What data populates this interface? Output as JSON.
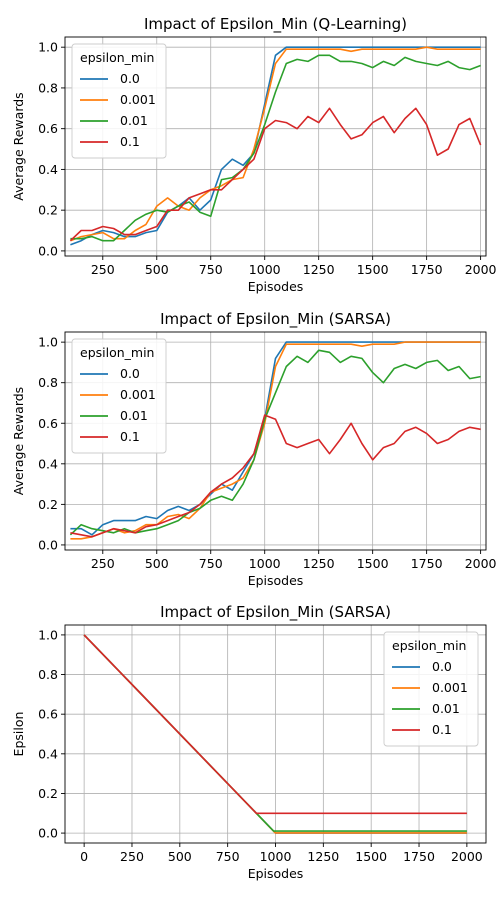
{
  "colors": {
    "0.0": "#1f77b4",
    "0.001": "#ff7f0e",
    "0.01": "#2ca02c",
    "0.1": "#d62728"
  },
  "chart_data": [
    {
      "type": "line",
      "title": "Impact of Epsilon_Min (Q-Learning)",
      "xlabel": "Episodes",
      "ylabel": "Average Rewards",
      "xlim": [
        75,
        2025
      ],
      "ylim": [
        -0.025,
        1.05
      ],
      "xticks": [
        250,
        500,
        750,
        1000,
        1250,
        1500,
        1750,
        2000
      ],
      "yticks": [
        0.0,
        0.2,
        0.4,
        0.6,
        0.8,
        1.0
      ],
      "grid": true,
      "legend_title": "epsilon_min",
      "legend_loc": "upper-left",
      "series": [
        {
          "name": "0.0",
          "x": [
            100,
            150,
            200,
            250,
            300,
            350,
            400,
            450,
            500,
            550,
            600,
            650,
            700,
            750,
            800,
            850,
            900,
            950,
            1000,
            1050,
            1100,
            1150,
            1200,
            1250,
            1300,
            1350,
            1400,
            1450,
            1500,
            1550,
            1600,
            1650,
            1700,
            1750,
            1800,
            1850,
            1900,
            1950,
            2000
          ],
          "y": [
            0.03,
            0.05,
            0.08,
            0.1,
            0.09,
            0.07,
            0.07,
            0.09,
            0.1,
            0.19,
            0.22,
            0.26,
            0.2,
            0.25,
            0.4,
            0.45,
            0.42,
            0.48,
            0.72,
            0.96,
            1.0,
            1.0,
            1.0,
            1.0,
            1.0,
            1.0,
            1.0,
            1.0,
            1.0,
            1.0,
            1.0,
            1.0,
            1.0,
            1.0,
            1.0,
            1.0,
            1.0,
            1.0,
            1.0
          ]
        },
        {
          "name": "0.001",
          "x": [
            100,
            150,
            200,
            250,
            300,
            350,
            400,
            450,
            500,
            550,
            600,
            650,
            700,
            750,
            800,
            850,
            900,
            950,
            1000,
            1050,
            1100,
            1150,
            1200,
            1250,
            1300,
            1350,
            1400,
            1450,
            1500,
            1550,
            1600,
            1650,
            1700,
            1750,
            1800,
            1850,
            1900,
            1950,
            2000
          ],
          "y": [
            0.05,
            0.07,
            0.08,
            0.09,
            0.06,
            0.06,
            0.1,
            0.13,
            0.22,
            0.26,
            0.22,
            0.2,
            0.26,
            0.3,
            0.32,
            0.35,
            0.36,
            0.5,
            0.7,
            0.92,
            0.99,
            0.99,
            0.99,
            0.99,
            0.99,
            0.99,
            0.98,
            0.99,
            0.99,
            0.99,
            0.99,
            0.99,
            0.99,
            1.0,
            0.99,
            0.99,
            0.99,
            0.99,
            0.99
          ]
        },
        {
          "name": "0.01",
          "x": [
            100,
            150,
            200,
            250,
            300,
            350,
            400,
            450,
            500,
            550,
            600,
            650,
            700,
            750,
            800,
            850,
            900,
            950,
            1000,
            1050,
            1100,
            1150,
            1200,
            1250,
            1300,
            1350,
            1400,
            1450,
            1500,
            1550,
            1600,
            1650,
            1700,
            1750,
            1800,
            1850,
            1900,
            1950,
            2000
          ],
          "y": [
            0.06,
            0.06,
            0.07,
            0.05,
            0.05,
            0.1,
            0.15,
            0.18,
            0.2,
            0.19,
            0.22,
            0.24,
            0.19,
            0.17,
            0.35,
            0.36,
            0.4,
            0.48,
            0.62,
            0.78,
            0.92,
            0.94,
            0.93,
            0.96,
            0.96,
            0.93,
            0.93,
            0.92,
            0.9,
            0.93,
            0.91,
            0.95,
            0.93,
            0.92,
            0.91,
            0.93,
            0.9,
            0.89,
            0.91
          ]
        },
        {
          "name": "0.1",
          "x": [
            100,
            150,
            200,
            250,
            300,
            350,
            400,
            450,
            500,
            550,
            600,
            650,
            700,
            750,
            800,
            850,
            900,
            950,
            1000,
            1050,
            1100,
            1150,
            1200,
            1250,
            1300,
            1350,
            1400,
            1450,
            1500,
            1550,
            1600,
            1650,
            1700,
            1750,
            1800,
            1850,
            1900,
            1950,
            2000
          ],
          "y": [
            0.05,
            0.1,
            0.1,
            0.12,
            0.11,
            0.08,
            0.08,
            0.1,
            0.12,
            0.2,
            0.2,
            0.26,
            0.28,
            0.3,
            0.3,
            0.35,
            0.4,
            0.45,
            0.6,
            0.64,
            0.63,
            0.6,
            0.66,
            0.63,
            0.7,
            0.62,
            0.55,
            0.57,
            0.63,
            0.66,
            0.58,
            0.65,
            0.7,
            0.62,
            0.47,
            0.5,
            0.62,
            0.65,
            0.52
          ]
        }
      ]
    },
    {
      "type": "line",
      "title": "Impact of Epsilon_Min (SARSA)",
      "xlabel": "Episodes",
      "ylabel": "Average Rewards",
      "xlim": [
        75,
        2025
      ],
      "ylim": [
        -0.025,
        1.05
      ],
      "xticks": [
        250,
        500,
        750,
        1000,
        1250,
        1500,
        1750,
        2000
      ],
      "yticks": [
        0.0,
        0.2,
        0.4,
        0.6,
        0.8,
        1.0
      ],
      "grid": true,
      "legend_title": "epsilon_min",
      "legend_loc": "upper-left",
      "series": [
        {
          "name": "0.0",
          "x": [
            100,
            150,
            200,
            250,
            300,
            350,
            400,
            450,
            500,
            550,
            600,
            650,
            700,
            750,
            800,
            850,
            900,
            950,
            1000,
            1050,
            1100,
            1150,
            1200,
            1250,
            1300,
            1350,
            1400,
            1450,
            1500,
            1550,
            1600,
            1650,
            1700,
            1750,
            1800,
            1850,
            1900,
            1950,
            2000
          ],
          "y": [
            0.08,
            0.08,
            0.05,
            0.1,
            0.12,
            0.12,
            0.12,
            0.14,
            0.13,
            0.17,
            0.19,
            0.17,
            0.2,
            0.25,
            0.3,
            0.27,
            0.36,
            0.45,
            0.62,
            0.92,
            1.0,
            1.0,
            1.0,
            1.0,
            1.0,
            1.0,
            1.0,
            1.0,
            1.0,
            1.0,
            1.0,
            1.0,
            1.0,
            1.0,
            1.0,
            1.0,
            1.0,
            1.0,
            1.0
          ]
        },
        {
          "name": "0.001",
          "x": [
            100,
            150,
            200,
            250,
            300,
            350,
            400,
            450,
            500,
            550,
            600,
            650,
            700,
            750,
            800,
            850,
            900,
            950,
            1000,
            1050,
            1100,
            1150,
            1200,
            1250,
            1300,
            1350,
            1400,
            1450,
            1500,
            1550,
            1600,
            1650,
            1700,
            1750,
            1800,
            1850,
            1900,
            1950,
            2000
          ],
          "y": [
            0.03,
            0.03,
            0.04,
            0.06,
            0.08,
            0.06,
            0.07,
            0.1,
            0.1,
            0.14,
            0.15,
            0.13,
            0.18,
            0.26,
            0.28,
            0.3,
            0.33,
            0.42,
            0.6,
            0.88,
            0.99,
            0.99,
            0.99,
            0.99,
            0.99,
            0.99,
            0.99,
            0.98,
            0.99,
            0.99,
            0.99,
            1.0,
            1.0,
            1.0,
            1.0,
            1.0,
            1.0,
            1.0,
            1.0
          ]
        },
        {
          "name": "0.01",
          "x": [
            100,
            150,
            200,
            250,
            300,
            350,
            400,
            450,
            500,
            550,
            600,
            650,
            700,
            750,
            800,
            850,
            900,
            950,
            1000,
            1050,
            1100,
            1150,
            1200,
            1250,
            1300,
            1350,
            1400,
            1450,
            1500,
            1550,
            1600,
            1650,
            1700,
            1750,
            1800,
            1850,
            1900,
            1950,
            2000
          ],
          "y": [
            0.05,
            0.1,
            0.08,
            0.07,
            0.06,
            0.08,
            0.06,
            0.07,
            0.08,
            0.1,
            0.12,
            0.16,
            0.18,
            0.22,
            0.24,
            0.22,
            0.3,
            0.42,
            0.62,
            0.75,
            0.88,
            0.93,
            0.9,
            0.96,
            0.95,
            0.9,
            0.93,
            0.92,
            0.85,
            0.8,
            0.87,
            0.89,
            0.87,
            0.9,
            0.91,
            0.86,
            0.88,
            0.82,
            0.83
          ]
        },
        {
          "name": "0.1",
          "x": [
            100,
            150,
            200,
            250,
            300,
            350,
            400,
            450,
            500,
            550,
            600,
            650,
            700,
            750,
            800,
            850,
            900,
            950,
            1000,
            1050,
            1100,
            1150,
            1200,
            1250,
            1300,
            1350,
            1400,
            1450,
            1500,
            1550,
            1600,
            1650,
            1700,
            1750,
            1800,
            1850,
            1900,
            1950,
            2000
          ],
          "y": [
            0.06,
            0.05,
            0.04,
            0.06,
            0.08,
            0.07,
            0.06,
            0.09,
            0.1,
            0.12,
            0.14,
            0.16,
            0.2,
            0.26,
            0.3,
            0.33,
            0.38,
            0.45,
            0.64,
            0.62,
            0.5,
            0.48,
            0.5,
            0.52,
            0.45,
            0.52,
            0.6,
            0.5,
            0.42,
            0.48,
            0.5,
            0.56,
            0.58,
            0.55,
            0.5,
            0.52,
            0.56,
            0.58,
            0.57
          ]
        }
      ]
    },
    {
      "type": "line",
      "title": "Impact of Epsilon_Min (SARSA)",
      "xlabel": "Episodes",
      "ylabel": "Epsilon",
      "xlim": [
        -100,
        2100
      ],
      "ylim": [
        -0.05,
        1.05
      ],
      "xticks": [
        0,
        250,
        500,
        750,
        1000,
        1250,
        1500,
        1750,
        2000
      ],
      "yticks": [
        0.0,
        0.2,
        0.4,
        0.6,
        0.8,
        1.0
      ],
      "grid": true,
      "legend_title": "epsilon_min",
      "legend_loc": "upper-right",
      "series": [
        {
          "name": "0.0",
          "x": [
            0,
            1000,
            2000
          ],
          "y": [
            1.0,
            0.0,
            0.0
          ]
        },
        {
          "name": "0.001",
          "x": [
            0,
            999,
            2000
          ],
          "y": [
            1.0,
            0.001,
            0.001
          ]
        },
        {
          "name": "0.01",
          "x": [
            0,
            990,
            2000
          ],
          "y": [
            1.0,
            0.01,
            0.01
          ]
        },
        {
          "name": "0.1",
          "x": [
            0,
            900,
            2000
          ],
          "y": [
            1.0,
            0.1,
            0.1
          ]
        }
      ]
    }
  ]
}
